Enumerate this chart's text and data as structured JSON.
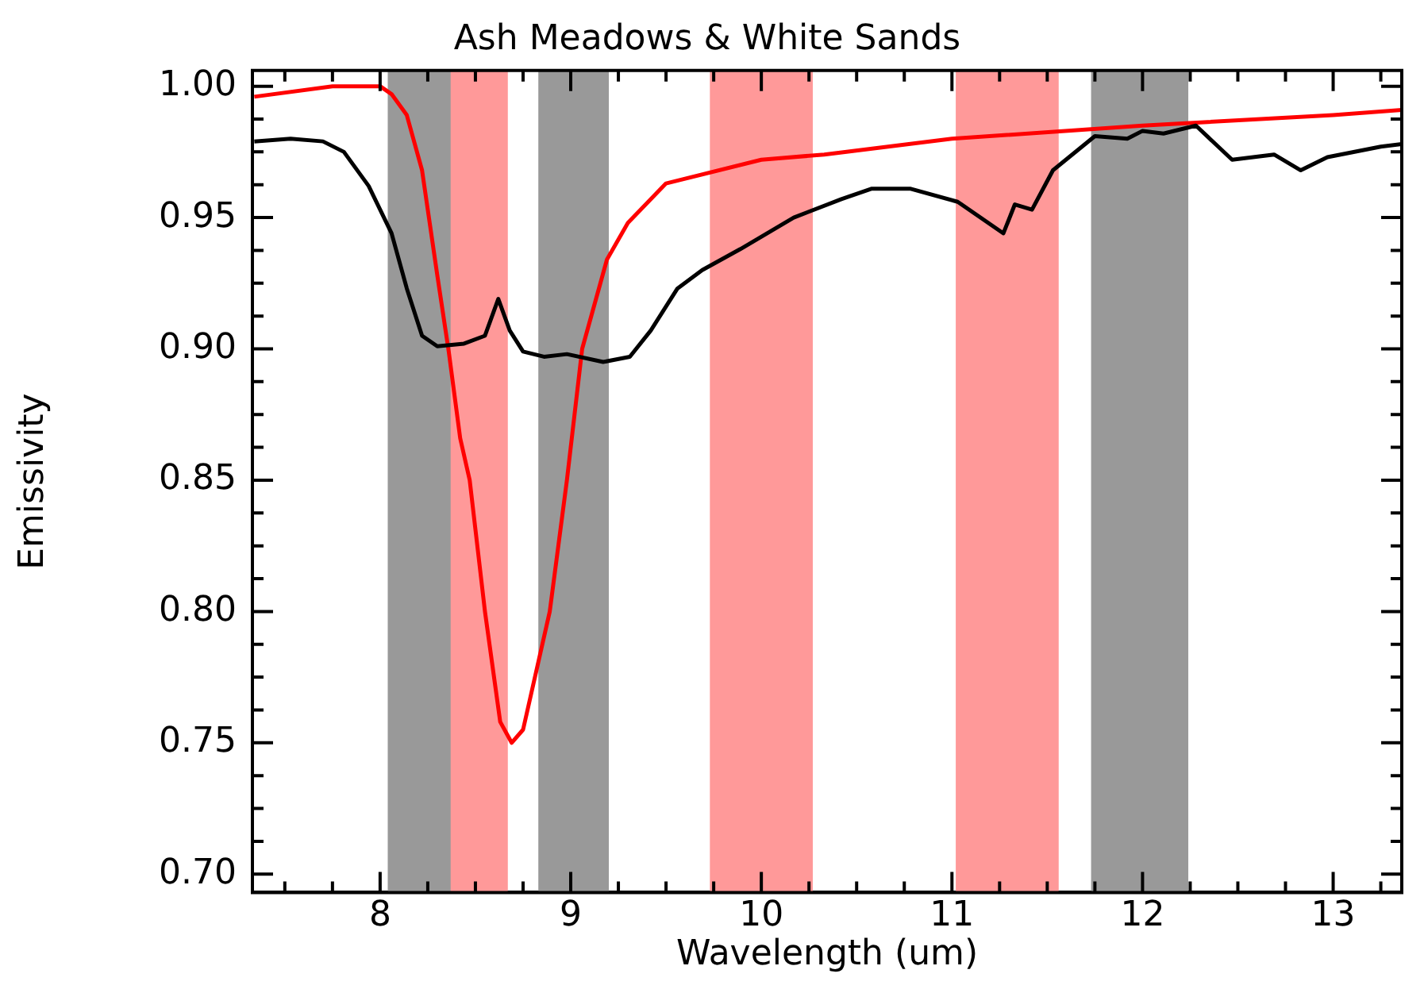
{
  "chart_data": {
    "type": "line",
    "title": "Ash Meadows & White Sands",
    "xlabel": "Wavelength (um)",
    "ylabel": "Emissivity",
    "xlim": [
      7.33,
      13.36
    ],
    "ylim": [
      0.693,
      1.006
    ],
    "xticks": [
      {
        "value": 7.5,
        "label": null
      },
      {
        "value": 7.75,
        "label": null
      },
      8,
      {
        "value": 8.25,
        "label": null
      },
      {
        "value": 8.5,
        "label": null
      },
      {
        "value": 8.75,
        "label": null
      },
      9,
      {
        "value": 9.25,
        "label": null
      },
      {
        "value": 9.5,
        "label": null
      },
      {
        "value": 9.75,
        "label": null
      },
      10,
      {
        "value": 10.25,
        "label": null
      },
      {
        "value": 10.5,
        "label": null
      },
      {
        "value": 10.75,
        "label": null
      },
      11,
      {
        "value": 11.25,
        "label": null
      },
      {
        "value": 11.5,
        "label": null
      },
      {
        "value": 11.75,
        "label": null
      },
      12,
      {
        "value": 12.25,
        "label": null
      },
      {
        "value": 12.5,
        "label": null
      },
      {
        "value": 12.75,
        "label": null
      },
      13,
      {
        "value": 13.25,
        "label": null
      }
    ],
    "yticks": [
      {
        "value": 0.7,
        "label": "0.70"
      },
      {
        "value": 0.7125,
        "label": null
      },
      {
        "value": 0.725,
        "label": null
      },
      {
        "value": 0.7375,
        "label": null
      },
      {
        "value": 0.75,
        "label": "0.75"
      },
      {
        "value": 0.7625,
        "label": null
      },
      {
        "value": 0.775,
        "label": null
      },
      {
        "value": 0.7875,
        "label": null
      },
      {
        "value": 0.8,
        "label": "0.80"
      },
      {
        "value": 0.8125,
        "label": null
      },
      {
        "value": 0.825,
        "label": null
      },
      {
        "value": 0.8375,
        "label": null
      },
      {
        "value": 0.85,
        "label": "0.85"
      },
      {
        "value": 0.8625,
        "label": null
      },
      {
        "value": 0.875,
        "label": null
      },
      {
        "value": 0.8875,
        "label": null
      },
      {
        "value": 0.9,
        "label": "0.90"
      },
      {
        "value": 0.9125,
        "label": null
      },
      {
        "value": 0.925,
        "label": null
      },
      {
        "value": 0.9375,
        "label": null
      },
      {
        "value": 0.95,
        "label": "0.95"
      },
      {
        "value": 0.9625,
        "label": null
      },
      {
        "value": 0.975,
        "label": null
      },
      {
        "value": 0.9875,
        "label": null
      },
      {
        "value": 1.0,
        "label": "1.00"
      }
    ],
    "grid": false,
    "legend": false,
    "bands": [
      {
        "axis": "x",
        "from": 8.33,
        "to": 8.67,
        "color": "#ff9999"
      },
      {
        "axis": "x",
        "from": 9.73,
        "to": 10.27,
        "color": "#ff9999"
      },
      {
        "axis": "x",
        "from": 11.02,
        "to": 11.56,
        "color": "#ff9999"
      },
      {
        "axis": "x",
        "from": 8.04,
        "to": 8.37,
        "color": "#999999"
      },
      {
        "axis": "x",
        "from": 8.83,
        "to": 9.2,
        "color": "#999999"
      },
      {
        "axis": "x",
        "from": 11.73,
        "to": 12.24,
        "color": "#999999"
      }
    ],
    "series": [
      {
        "color": "#000000",
        "x": [
          7.34,
          7.53,
          7.7,
          7.81,
          7.94,
          8.06,
          8.14,
          8.22,
          8.3,
          8.44,
          8.55,
          8.62,
          8.68,
          8.75,
          8.86,
          8.98,
          9.17,
          9.31,
          9.42,
          9.56,
          9.69,
          9.89,
          10.17,
          10.42,
          10.58,
          10.78,
          11.03,
          11.27,
          11.33,
          11.42,
          11.53,
          11.75,
          11.92,
          12.0,
          12.11,
          12.28,
          12.47,
          12.69,
          12.83,
          12.97,
          13.25,
          13.36
        ],
        "values": [
          0.979,
          0.98,
          0.979,
          0.975,
          0.962,
          0.944,
          0.923,
          0.905,
          0.901,
          0.902,
          0.905,
          0.919,
          0.907,
          0.899,
          0.897,
          0.898,
          0.895,
          0.897,
          0.907,
          0.923,
          0.93,
          0.938,
          0.95,
          0.957,
          0.961,
          0.961,
          0.956,
          0.944,
          0.955,
          0.953,
          0.968,
          0.981,
          0.98,
          0.983,
          0.982,
          0.985,
          0.972,
          0.974,
          0.968,
          0.973,
          0.977,
          0.978
        ]
      },
      {
        "color": "#ff0000",
        "x": [
          7.34,
          7.75,
          8.0,
          8.06,
          8.14,
          8.22,
          8.3,
          8.36,
          8.42,
          8.47,
          8.55,
          8.63,
          8.69,
          8.75,
          8.89,
          8.98,
          9.06,
          9.19,
          9.3,
          9.5,
          10.0,
          10.33,
          11.0,
          12.0,
          13.0,
          13.36
        ],
        "values": [
          0.996,
          1.0,
          1.0,
          0.997,
          0.989,
          0.968,
          0.928,
          0.899,
          0.866,
          0.85,
          0.8,
          0.758,
          0.75,
          0.755,
          0.8,
          0.85,
          0.9,
          0.934,
          0.948,
          0.963,
          0.972,
          0.974,
          0.98,
          0.985,
          0.989,
          0.991
        ]
      }
    ]
  }
}
